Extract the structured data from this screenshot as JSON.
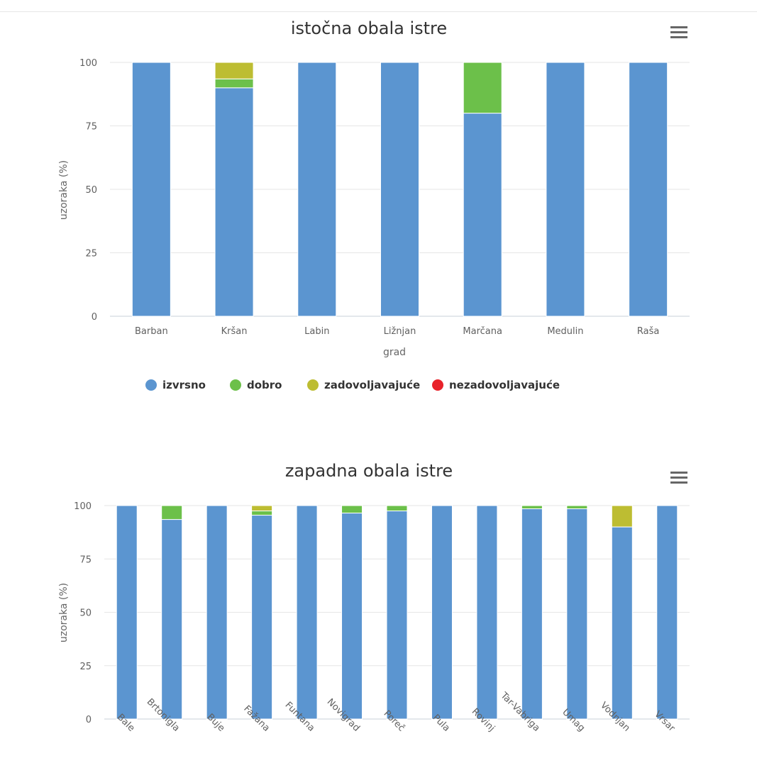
{
  "chart_data": [
    {
      "type": "bar",
      "stacked": true,
      "title": "istočna obala istre",
      "xlabel": "grad",
      "ylabel": "uzoraka (%)",
      "ylim": [
        0,
        100
      ],
      "yticks": [
        0,
        25,
        50,
        75,
        100
      ],
      "grid": true,
      "categories": [
        "Barban",
        "Kršan",
        "Labin",
        "Ližnjan",
        "Marčana",
        "Medulin",
        "Raša"
      ],
      "series": [
        {
          "name": "izvrsno",
          "color": "#5b95d0",
          "values": [
            100,
            90,
            100,
            100,
            80,
            100,
            100
          ]
        },
        {
          "name": "dobro",
          "color": "#6cc04a",
          "values": [
            0,
            3.5,
            0,
            0,
            20,
            0,
            0
          ]
        },
        {
          "name": "zadovoljavajuće",
          "color": "#bdbd32",
          "values": [
            0,
            6.5,
            0,
            0,
            0,
            0,
            0
          ]
        },
        {
          "name": "nezadovoljavajuće",
          "color": "#e8222a",
          "values": [
            0,
            0,
            0,
            0,
            0,
            0,
            0
          ]
        }
      ],
      "legend": "bottom"
    },
    {
      "type": "bar",
      "stacked": true,
      "title": "zapadna obala istre",
      "xlabel": "",
      "ylabel": "uzoraka (%)",
      "ylim": [
        0,
        100
      ],
      "yticks": [
        0,
        25,
        50,
        75,
        100
      ],
      "grid": true,
      "categories": [
        "Bale",
        "Brtonigla",
        "Buje",
        "Fažana",
        "Funtana",
        "Novigrad",
        "Poreč",
        "Pula",
        "Rovinj",
        "Tar-Vabriga",
        "Umag",
        "Vodnjan",
        "Vrsar"
      ],
      "series": [
        {
          "name": "izvrsno",
          "color": "#5b95d0",
          "values": [
            100,
            93.5,
            100,
            95.5,
            100,
            96.5,
            97.5,
            100,
            100,
            98.5,
            98.5,
            90,
            100
          ]
        },
        {
          "name": "dobro",
          "color": "#6cc04a",
          "values": [
            0,
            6.5,
            0,
            2,
            0,
            3.5,
            2.5,
            0,
            0,
            1.5,
            1.5,
            0,
            0
          ]
        },
        {
          "name": "zadovoljavajuće",
          "color": "#bdbd32",
          "values": [
            0,
            0,
            0,
            2.5,
            0,
            0,
            0,
            0,
            0,
            0,
            0,
            10,
            0
          ]
        },
        {
          "name": "nezadovoljavajuće",
          "color": "#e8222a",
          "values": [
            0,
            0,
            0,
            0,
            0,
            0,
            0,
            0,
            0,
            0,
            0,
            0,
            0
          ]
        }
      ],
      "legend": "none"
    }
  ]
}
